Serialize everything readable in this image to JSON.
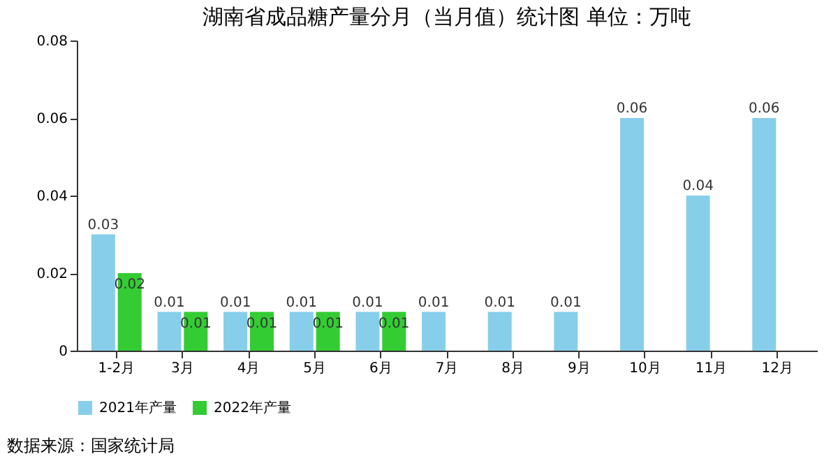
{
  "chart_data": {
    "type": "bar",
    "title": "湖南省成品糖产量分月（当月值）统计图 单位：万吨",
    "categories": [
      "1-2月",
      "3月",
      "4月",
      "5月",
      "6月",
      "7月",
      "8月",
      "9月",
      "10月",
      "11月",
      "12月"
    ],
    "series": [
      {
        "name": "2021年产量",
        "color": "#87ceeb",
        "values": [
          0.03,
          0.01,
          0.01,
          0.01,
          0.01,
          0.01,
          0.01,
          0.01,
          0.06,
          0.04,
          0.06
        ]
      },
      {
        "name": "2022年产量",
        "color": "#33cc33",
        "values": [
          0.02,
          0.01,
          0.01,
          0.01,
          0.01,
          null,
          null,
          null,
          null,
          null,
          null
        ]
      }
    ],
    "ylim": [
      0,
      0.08
    ],
    "yticks": [
      0,
      0.02,
      0.04,
      0.06,
      0.08
    ],
    "data_labels": true,
    "grid": false,
    "legend": "bottom",
    "annotations": [
      "数据来源：国家统计局"
    ]
  }
}
